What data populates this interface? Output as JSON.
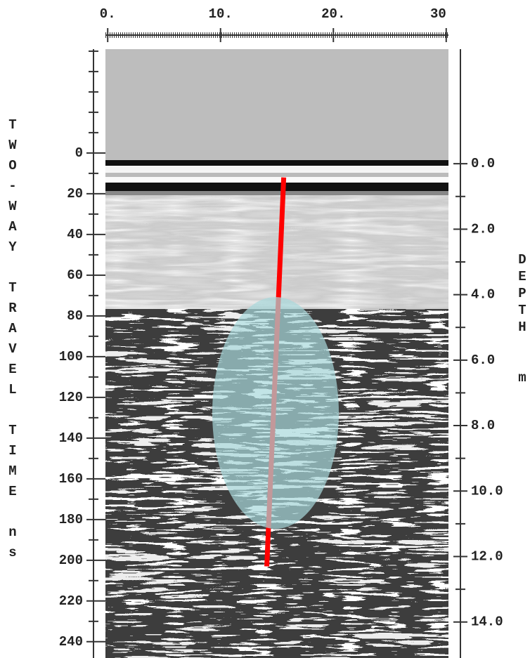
{
  "chart_data": {
    "type": "radargram",
    "x_axis": {
      "xlim": [
        -0.2,
        30.2
      ],
      "xticks": [
        {
          "value": 0,
          "label": "0."
        },
        {
          "value": 10,
          "label": "10."
        },
        {
          "value": 20,
          "label": "20."
        },
        30
      ]
    },
    "y_label": "TWO-WAY TRAVEL TIME ns",
    "ylim": [
      -51,
      248
    ],
    "yticks": [
      0,
      20,
      40,
      60,
      80,
      100,
      120,
      140,
      160,
      180,
      200,
      220,
      240
    ],
    "y2_label": "DEPTH m",
    "y2lim": [
      -3.5,
      15.1
    ],
    "y2ticks": [
      {
        "value": 0,
        "label": "0.0"
      },
      {
        "value": 2,
        "label": "2.0"
      },
      {
        "value": 4,
        "label": "4.0"
      },
      {
        "value": 6,
        "label": "6.0"
      },
      {
        "value": 8,
        "label": "8.0"
      },
      {
        "value": 10,
        "label": "10.0"
      },
      {
        "value": 12,
        "label": "12.0"
      },
      {
        "value": 14,
        "label": "14.0"
      }
    ],
    "series": [
      {
        "color": "#ff0000",
        "x": [
          15.6,
          14.1
        ],
        "values": [
          12,
          203
        ]
      }
    ]
  }
}
